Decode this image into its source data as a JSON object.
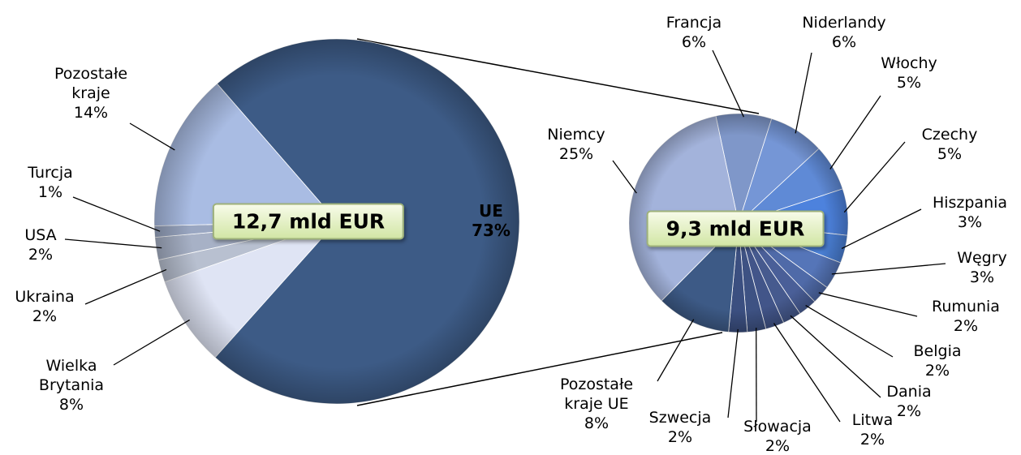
{
  "chart_data": [
    {
      "type": "pie",
      "annotation": "12,7 mld EUR",
      "categories": [
        "UE",
        "Wielka Brytania",
        "Ukraina",
        "USA",
        "Turcja",
        "Pozostałe kraje"
      ],
      "values": [
        73,
        8,
        2,
        2,
        1,
        14
      ],
      "value_labels": [
        "73%",
        "8%",
        "2%",
        "2%",
        "1%",
        "14%"
      ],
      "colors": [
        "#3d5b86",
        "#dfe4f4",
        "#b8c0d0",
        "#a7b1c6",
        "#9aa7c2",
        "#a9bce3"
      ]
    },
    {
      "type": "pie",
      "annotation": "9,3 mld EUR",
      "categories": [
        "Francja",
        "Niderlandy",
        "Włochy",
        "Czechy",
        "Hiszpania",
        "Węgry",
        "Rumunia",
        "Belgia",
        "Dania",
        "Litwa",
        "Słowacja",
        "Szwecja",
        "Pozostałe kraje UE",
        "Niemcy"
      ],
      "values": [
        6,
        6,
        5,
        5,
        3,
        3,
        2,
        2,
        2,
        2,
        2,
        2,
        8,
        25
      ],
      "value_labels": [
        "6%",
        "6%",
        "5%",
        "5%",
        "3%",
        "3%",
        "2%",
        "2%",
        "2%",
        "2%",
        "2%",
        "2%",
        "8%",
        "25%"
      ],
      "colors": [
        "#7f97c9",
        "#7596d6",
        "#5f8ad6",
        "#4d82dd",
        "#4a7fd4",
        "#5575b8",
        "#4f6aa8",
        "#4a5f98",
        "#465a8e",
        "#425589",
        "#3e5283",
        "#3b4f80",
        "#3d5a86",
        "#a3b3db"
      ]
    }
  ]
}
